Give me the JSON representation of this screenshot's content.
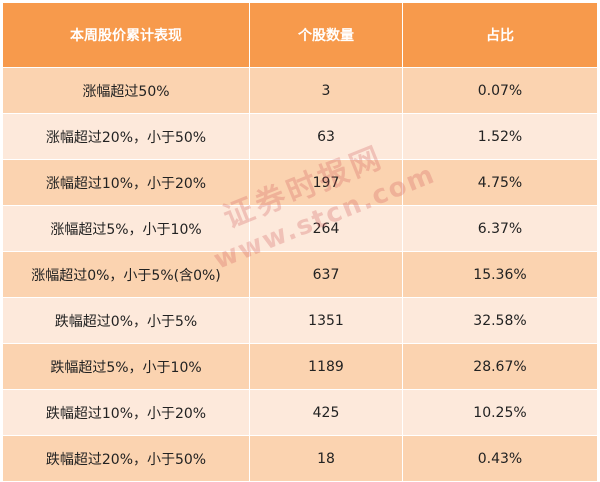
{
  "colors": {
    "header_bg": "#f79a4c",
    "row_dark": "#fbd3b0",
    "row_light": "#fde9db",
    "header_text": "#ffffff"
  },
  "table": {
    "headers": [
      "本周股价累计表现",
      "个股数量",
      "占比"
    ],
    "rows": [
      {
        "label": "涨幅超过50%",
        "count": "3",
        "ratio": "0.07%"
      },
      {
        "label": "涨幅超过20%，小于50%",
        "count": "63",
        "ratio": "1.52%"
      },
      {
        "label": "涨幅超过10%，小于20%",
        "count": "197",
        "ratio": "4.75%"
      },
      {
        "label": "涨幅超过5%，小于10%",
        "count": "264",
        "ratio": "6.37%"
      },
      {
        "label": "涨幅超过0%，小于5%(含0%)",
        "count": "637",
        "ratio": "15.36%"
      },
      {
        "label": "跌幅超过0%，小于5%",
        "count": "1351",
        "ratio": "32.58%"
      },
      {
        "label": "跌幅超过5%，小于10%",
        "count": "1189",
        "ratio": "28.67%"
      },
      {
        "label": "跌幅超过10%，小于20%",
        "count": "425",
        "ratio": "10.25%"
      },
      {
        "label": "跌幅超过20%，小于50%",
        "count": "18",
        "ratio": "0.43%"
      }
    ]
  },
  "watermark": {
    "name": "证券时报网",
    "url": "www.stcn.com"
  }
}
